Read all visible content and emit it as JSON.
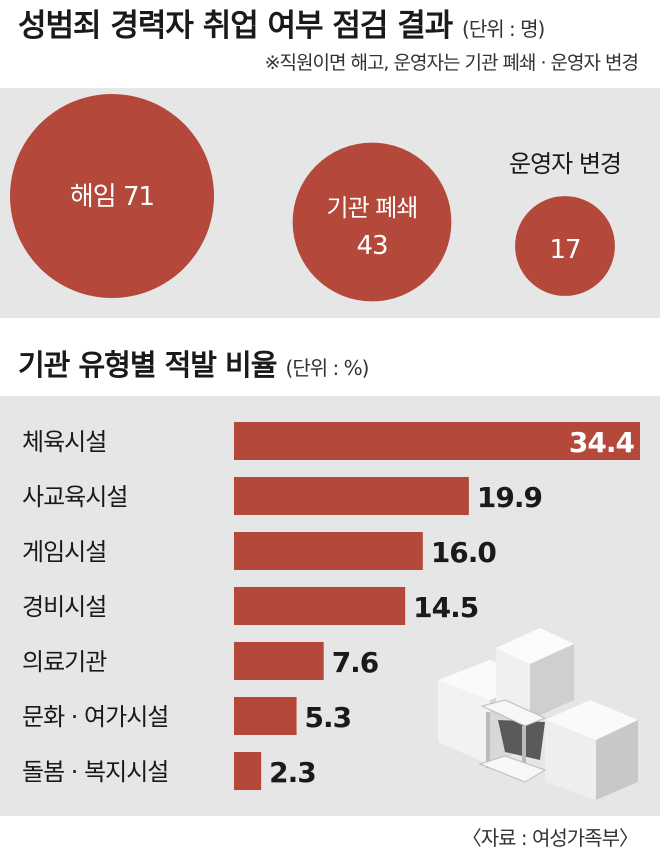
{
  "title": "성범죄 경력자 취업 여부 점검 결과",
  "title_unit": "(단위 : 명)",
  "subtitle": "※직원이면 해고, 운영자는 기관 폐쇄 · 운영자 변경",
  "section2_title": "기관 유형별 적발 비율",
  "section2_unit": "(단위 : %)",
  "source": "〈자료 : 여성가족부〉",
  "colors": {
    "bar": "#b4483a",
    "panel": "#e6e6e6",
    "text": "#1a1a1a"
  },
  "chart_data": [
    {
      "type": "bubble",
      "title": "성범죄 경력자 취업 여부 점검 결과",
      "unit": "명",
      "items": [
        {
          "label": "해임",
          "value": 71,
          "text": "해임 71"
        },
        {
          "label": "기관 폐쇄",
          "value": 43,
          "text": "기관 폐쇄",
          "value_text": "43"
        },
        {
          "label": "운영자 변경",
          "value": 17,
          "text": "운영자 변경",
          "value_text": "17"
        }
      ]
    },
    {
      "type": "bar",
      "orientation": "horizontal",
      "title": "기관 유형별 적발 비율",
      "unit": "%",
      "categories": [
        "체육시설",
        "사교육시설",
        "게임시설",
        "경비시설",
        "의료기관",
        "문화 · 여가시설",
        "돌봄 · 복지시설"
      ],
      "values": [
        34.4,
        19.9,
        16.0,
        14.5,
        7.6,
        5.3,
        2.3
      ],
      "value_labels": [
        "34.4",
        "19.9",
        "16.0",
        "14.5",
        "7.6",
        "5.3",
        "2.3"
      ],
      "xlim": [
        0,
        34.4
      ]
    }
  ]
}
